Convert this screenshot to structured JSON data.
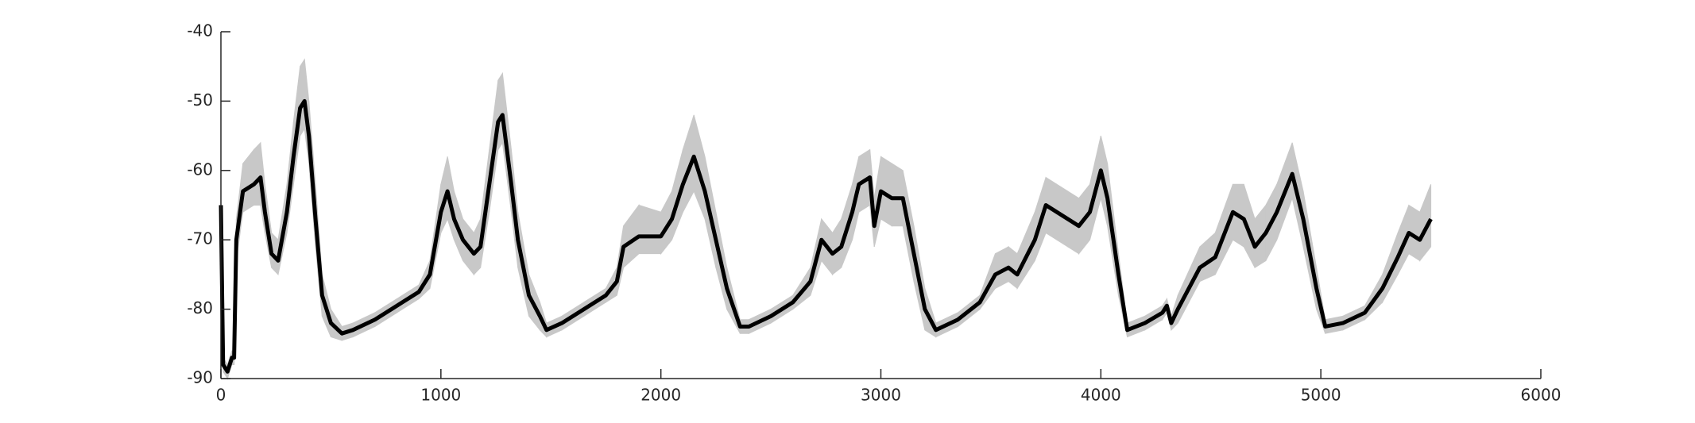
{
  "chart_data": {
    "type": "line",
    "x": [
      0,
      10,
      30,
      50,
      60,
      70,
      100,
      150,
      180,
      200,
      230,
      260,
      300,
      330,
      360,
      380,
      400,
      430,
      460,
      500,
      550,
      600,
      700,
      800,
      900,
      950,
      1000,
      1030,
      1060,
      1100,
      1150,
      1180,
      1220,
      1260,
      1280,
      1320,
      1350,
      1400,
      1450,
      1480,
      1550,
      1650,
      1750,
      1800,
      1830,
      1900,
      2000,
      2050,
      2100,
      2150,
      2200,
      2250,
      2300,
      2360,
      2400,
      2500,
      2600,
      2680,
      2730,
      2780,
      2820,
      2870,
      2900,
      2950,
      2970,
      3000,
      3050,
      3100,
      3150,
      3200,
      3250,
      3350,
      3450,
      3520,
      3580,
      3620,
      3700,
      3750,
      3800,
      3850,
      3900,
      3950,
      4000,
      4030,
      4080,
      4120,
      4200,
      4280,
      4300,
      4320,
      4350,
      4450,
      4520,
      4600,
      4650,
      4700,
      4750,
      4800,
      4870,
      4920,
      4980,
      5020,
      5100,
      5200,
      5280,
      5350,
      5400,
      5450,
      5500
    ],
    "series": [
      {
        "color": "#000000",
        "values": [
          -65,
          -88,
          -89,
          -87,
          -87,
          -70,
          -63,
          -62,
          -61,
          -66,
          -72,
          -73,
          -66,
          -58,
          -51,
          -50,
          -55,
          -67,
          -78,
          -82,
          -83.5,
          -83,
          -81.5,
          -79.5,
          -77.5,
          -75,
          -66,
          -63,
          -67,
          -70,
          -72,
          -71,
          -62,
          -53,
          -52,
          -62,
          -70,
          -78,
          -81,
          -83,
          -82,
          -80,
          -78,
          -76,
          -71,
          -69.5,
          -69.5,
          -67,
          -62,
          -58,
          -63,
          -70,
          -77,
          -82.5,
          -82.5,
          -81,
          -79,
          -76,
          -70,
          -72,
          -71,
          -66,
          -62,
          -61,
          -68,
          -63,
          -64,
          -64,
          -72,
          -80,
          -83,
          -81.5,
          -79,
          -75,
          -74,
          -75,
          -70,
          -65,
          -66,
          -67,
          -68,
          -66,
          -60,
          -64,
          -75,
          -83,
          -82,
          -80.5,
          -79.5,
          -82,
          -80,
          -74,
          -72.5,
          -66,
          -67,
          -71,
          -69,
          -66,
          -60.5,
          -67,
          -77,
          -82.5,
          -82,
          -80.5,
          -77,
          -72.5,
          -69,
          -70,
          -67
        ]
      }
    ],
    "band": {
      "color": "#c8c8c8",
      "upper": [
        -64,
        -87,
        -88,
        -86,
        -86,
        -67,
        -59,
        -57,
        -56,
        -62,
        -69,
        -70,
        -62,
        -53,
        -45,
        -44,
        -50,
        -62,
        -75,
        -80,
        -82.5,
        -82,
        -80.5,
        -78.5,
        -76.5,
        -73,
        -62,
        -58,
        -63,
        -67,
        -69,
        -67,
        -57,
        -47,
        -46,
        -57,
        -66,
        -75,
        -79,
        -82,
        -81,
        -79,
        -77,
        -74,
        -68,
        -65,
        -66,
        -63,
        -57,
        -52,
        -58,
        -66,
        -74,
        -81.5,
        -81.5,
        -80,
        -78,
        -74,
        -67,
        -69,
        -67,
        -62,
        -58,
        -57,
        -64,
        -58,
        -59,
        -60,
        -68,
        -77,
        -82,
        -80.5,
        -78,
        -72,
        -71,
        -72,
        -66,
        -61,
        -62,
        -63,
        -64,
        -62,
        -55,
        -59,
        -72,
        -82,
        -81,
        -79.5,
        -78.5,
        -81,
        -78,
        -71,
        -69,
        -62,
        -62,
        -67,
        -65,
        -62,
        -56,
        -63,
        -74,
        -81.5,
        -81,
        -79.5,
        -75,
        -69,
        -65,
        -66,
        -62
      ],
      "lower": [
        -66,
        -89,
        -90,
        -88,
        -88,
        -73,
        -66,
        -65,
        -65,
        -69,
        -74,
        -75,
        -69,
        -62,
        -55,
        -54,
        -59,
        -71,
        -81,
        -84,
        -84.5,
        -84,
        -82.5,
        -80.5,
        -78.5,
        -77,
        -69,
        -67,
        -70,
        -73,
        -75,
        -74,
        -66,
        -57,
        -56,
        -66,
        -74,
        -81,
        -83,
        -84,
        -83,
        -81,
        -79,
        -78,
        -74,
        -72,
        -72,
        -70,
        -66,
        -63,
        -67,
        -74,
        -80,
        -83.5,
        -83.5,
        -82,
        -80,
        -78,
        -73,
        -75,
        -74,
        -70,
        -66,
        -65,
        -71,
        -67,
        -68,
        -68,
        -76,
        -83,
        -84,
        -82.5,
        -80,
        -77,
        -76,
        -77,
        -73,
        -69,
        -70,
        -71,
        -72,
        -70,
        -64,
        -68,
        -78,
        -84,
        -83,
        -81.5,
        -80.5,
        -83,
        -82,
        -76,
        -75,
        -70,
        -71,
        -74,
        -73,
        -70,
        -64,
        -71,
        -80,
        -83.5,
        -83,
        -81.5,
        -79,
        -75,
        -72,
        -73,
        -71
      ]
    },
    "xlim": [
      0,
      6000
    ],
    "xticks": [
      0,
      1000,
      2000,
      3000,
      4000,
      5000,
      6000
    ],
    "ylim": [
      -90,
      -40
    ],
    "yticks": [
      -90,
      -80,
      -70,
      -60,
      -50,
      -40
    ]
  }
}
